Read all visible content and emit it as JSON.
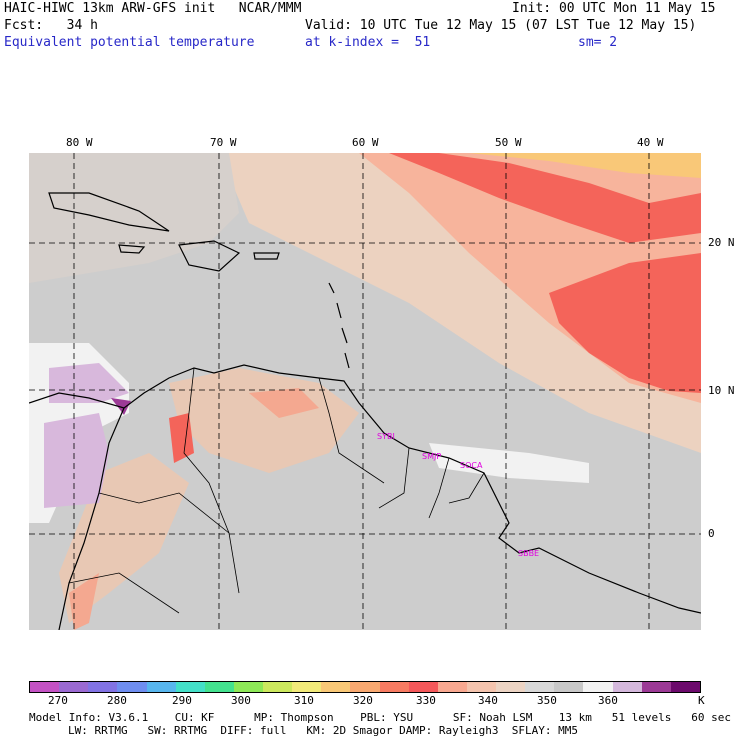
{
  "header": {
    "line1_left": "HAIC-HIWC 13km ARW-GFS init   NCAR/MMM",
    "line1_right": "Init: 00 UTC Mon 11 May 15",
    "line2_left": "Fcst:   34 h",
    "line2_right": "Valid: 10 UTC Tue 12 May 15 (07 LST Tue 12 May 15)",
    "line3_left": "Equivalent potential temperature",
    "line3_mid": "at k-index =  51",
    "line3_right": "sm= 2"
  },
  "map": {
    "lon_labels": [
      "80 W",
      "70 W",
      "60 W",
      "50 W",
      "40 W"
    ],
    "lat_labels": [
      "20 N",
      "10 N",
      "0"
    ],
    "sites": [
      "SYBI",
      "SMJP",
      "SOCA",
      "SBBE"
    ]
  },
  "colorbar": {
    "colors": [
      "#c452c4",
      "#9b6ad2",
      "#8273e4",
      "#6f8ef0",
      "#58b6ee",
      "#44e0c8",
      "#44e28f",
      "#8ee858",
      "#cce85e",
      "#f2ea7a",
      "#f9c877",
      "#f8a870",
      "#f77b62",
      "#f4585a",
      "#f8a890",
      "#f4c4ae",
      "#ecd4c4",
      "#d8d8d8",
      "#c8c8c8",
      "#f2f2f2",
      "#d4b8dc",
      "#9c3a96",
      "#6c0a6c"
    ],
    "tick_labels": [
      "270",
      "280",
      "290",
      "300",
      "310",
      "320",
      "330",
      "340",
      "350",
      "360",
      "K"
    ]
  },
  "footer": {
    "line1": "Model Info: V3.6.1    CU: KF      MP: Thompson    PBL: YSU      SF: Noah LSM    13 km   51 levels   60 sec",
    "line2": "LW: RRTMG   SW: RRTMG  DIFF: full   KM: 2D Smagor DAMP: Rayleigh3  SFLAY: MM5"
  }
}
